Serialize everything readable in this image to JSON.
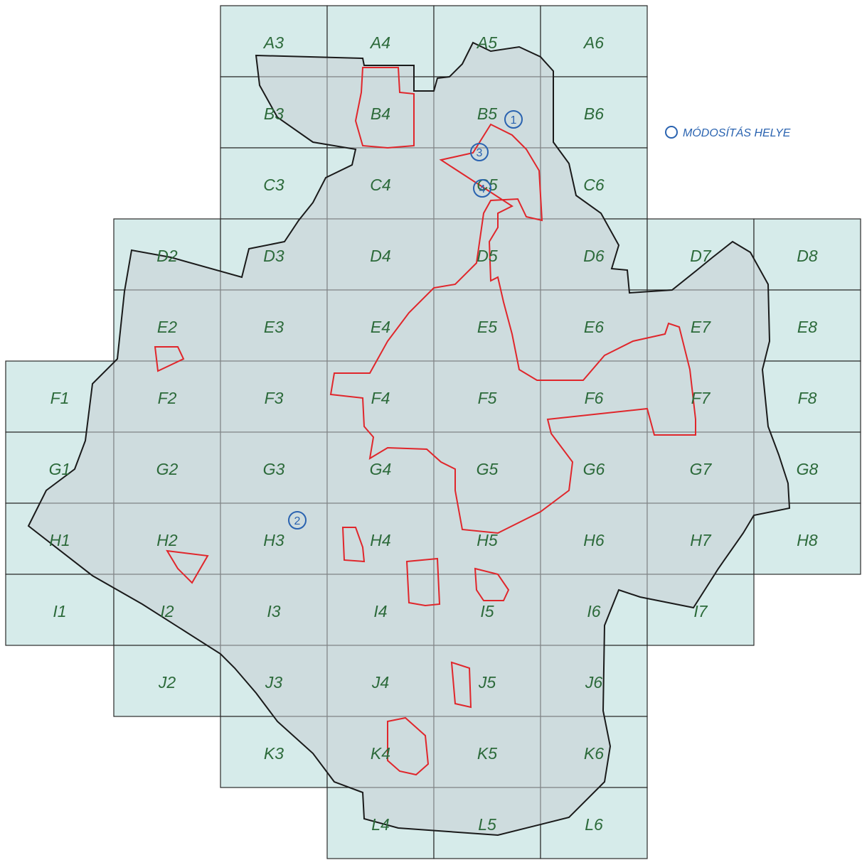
{
  "grid_labels": [
    "A3",
    "A4",
    "A5",
    "A6",
    "B3",
    "B4",
    "B5",
    "B6",
    "C3",
    "C4",
    "C5",
    "C6",
    "D2",
    "D3",
    "D4",
    "D5",
    "D6",
    "D7",
    "D8",
    "E2",
    "E3",
    "E4",
    "E5",
    "E6",
    "E7",
    "E8",
    "F1",
    "F2",
    "F3",
    "F4",
    "F5",
    "F6",
    "F7",
    "F8",
    "G1",
    "G2",
    "G3",
    "G4",
    "G5",
    "G6",
    "G7",
    "G8",
    "H1",
    "H2",
    "H3",
    "H4",
    "H5",
    "H6",
    "H7",
    "H8",
    "I1",
    "I2",
    "I3",
    "I4",
    "I5",
    "I6",
    "I7",
    "J2",
    "J3",
    "J4",
    "J5",
    "J6",
    "K3",
    "K4",
    "K5",
    "K6",
    "L4",
    "L5",
    "L6"
  ],
  "markers": [
    "1",
    "2",
    "3",
    "4"
  ],
  "legend": {
    "label": "MÓDOSÍTÁS HELYE"
  },
  "colors": {
    "cell_fill": "#d6ebea",
    "label": "#2c6a3a",
    "boundary": "#1a1a1a",
    "red_zone": "#e0262b",
    "marker": "#2a63b0"
  }
}
